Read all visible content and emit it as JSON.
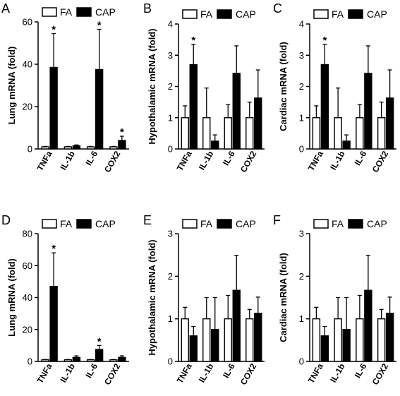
{
  "chart_data": [
    {
      "panel_label": "A",
      "type": "bar",
      "categories": [
        "TNFa",
        "IL-1b",
        "IL-6",
        "COX2"
      ],
      "legend": [
        "FA",
        "CAP"
      ],
      "ylabel": "Lung mRNA (fold)",
      "ylim": [
        0,
        60
      ],
      "yticks": [
        0,
        20,
        40,
        60
      ],
      "series": [
        {
          "name": "FA",
          "values": [
            1,
            1,
            1,
            1
          ],
          "errors": [
            0.2,
            0.2,
            0.2,
            0.2
          ]
        },
        {
          "name": "CAP",
          "values": [
            38.5,
            1.5,
            37.5,
            4
          ],
          "errors": [
            16,
            0.4,
            19,
            2
          ]
        }
      ],
      "significance": [
        true,
        false,
        true,
        true
      ]
    },
    {
      "panel_label": "B",
      "type": "bar",
      "categories": [
        "TNFa",
        "IL-1b",
        "IL-6",
        "COX2"
      ],
      "legend": [
        "FA",
        "CAP"
      ],
      "ylabel": "Hypothalamic mRNA (fold)",
      "ylim": [
        0,
        4
      ],
      "yticks": [
        0,
        1,
        2,
        3,
        4
      ],
      "series": [
        {
          "name": "FA",
          "values": [
            1,
            1,
            1,
            1
          ],
          "errors": [
            0.38,
            0.95,
            0.42,
            0.5
          ]
        },
        {
          "name": "CAP",
          "values": [
            2.7,
            0.25,
            2.42,
            1.63
          ],
          "errors": [
            0.65,
            0.2,
            0.88,
            0.9
          ]
        }
      ],
      "significance": [
        true,
        false,
        false,
        false
      ]
    },
    {
      "panel_label": "C",
      "type": "bar",
      "categories": [
        "TNFa",
        "IL-1b",
        "IL-6",
        "COX2"
      ],
      "legend": [
        "FA",
        "CAP"
      ],
      "ylabel": "Cardiac mRNA (fold)",
      "ylim": [
        0,
        4
      ],
      "yticks": [
        0,
        1,
        2,
        3,
        4
      ],
      "series": [
        {
          "name": "FA",
          "values": [
            1,
            1,
            1,
            1
          ],
          "errors": [
            0.38,
            0.95,
            0.42,
            0.5
          ]
        },
        {
          "name": "CAP",
          "values": [
            2.7,
            0.25,
            2.42,
            1.63
          ],
          "errors": [
            0.65,
            0.2,
            0.88,
            0.9
          ]
        }
      ],
      "significance": [
        true,
        false,
        false,
        false
      ]
    },
    {
      "panel_label": "D",
      "type": "bar",
      "categories": [
        "TNFa",
        "IL-1b",
        "IL-6",
        "COX2"
      ],
      "legend": [
        "FA",
        "CAP"
      ],
      "ylabel": "Lung mRNA (fold)",
      "ylim": [
        0,
        80
      ],
      "yticks": [
        0,
        20,
        40,
        60,
        80
      ],
      "series": [
        {
          "name": "FA",
          "values": [
            1,
            1,
            1,
            1
          ],
          "errors": [
            0.2,
            0.2,
            0.2,
            0.2
          ]
        },
        {
          "name": "CAP",
          "values": [
            47,
            2.5,
            7.5,
            2.5
          ],
          "errors": [
            21,
            1,
            2.5,
            1
          ]
        }
      ],
      "significance": [
        true,
        false,
        true,
        false
      ]
    },
    {
      "panel_label": "E",
      "type": "bar",
      "categories": [
        "TNFa",
        "IL-1b",
        "IL-6",
        "COX2"
      ],
      "legend": [
        "FA",
        "CAP"
      ],
      "ylabel": "Hypothalamic mRNA (fold)",
      "ylim": [
        0,
        3
      ],
      "yticks": [
        0,
        1,
        2,
        3
      ],
      "series": [
        {
          "name": "FA",
          "values": [
            1,
            1,
            1,
            1
          ],
          "errors": [
            0.27,
            0.5,
            0.55,
            0.22
          ]
        },
        {
          "name": "CAP",
          "values": [
            0.6,
            0.75,
            1.67,
            1.13
          ],
          "errors": [
            0.22,
            0.75,
            0.82,
            0.38
          ]
        }
      ],
      "significance": [
        false,
        false,
        false,
        false
      ]
    },
    {
      "panel_label": "F",
      "type": "bar",
      "categories": [
        "TNFa",
        "IL-1b",
        "IL-6",
        "COX2"
      ],
      "legend": [
        "FA",
        "CAP"
      ],
      "ylabel": "Cardiac mRNA (fold)",
      "ylim": [
        0,
        3
      ],
      "yticks": [
        0,
        1,
        2,
        3
      ],
      "series": [
        {
          "name": "FA",
          "values": [
            1,
            1,
            1,
            1
          ],
          "errors": [
            0.27,
            0.5,
            0.55,
            0.22
          ]
        },
        {
          "name": "CAP",
          "values": [
            0.6,
            0.75,
            1.67,
            1.13
          ],
          "errors": [
            0.22,
            0.75,
            0.82,
            0.38
          ]
        }
      ],
      "significance": [
        false,
        false,
        false,
        false
      ]
    }
  ],
  "colors": {
    "fa_fill": "#ffffff",
    "cap_fill": "#000000",
    "stroke": "#000000"
  },
  "significance_marker": "*"
}
